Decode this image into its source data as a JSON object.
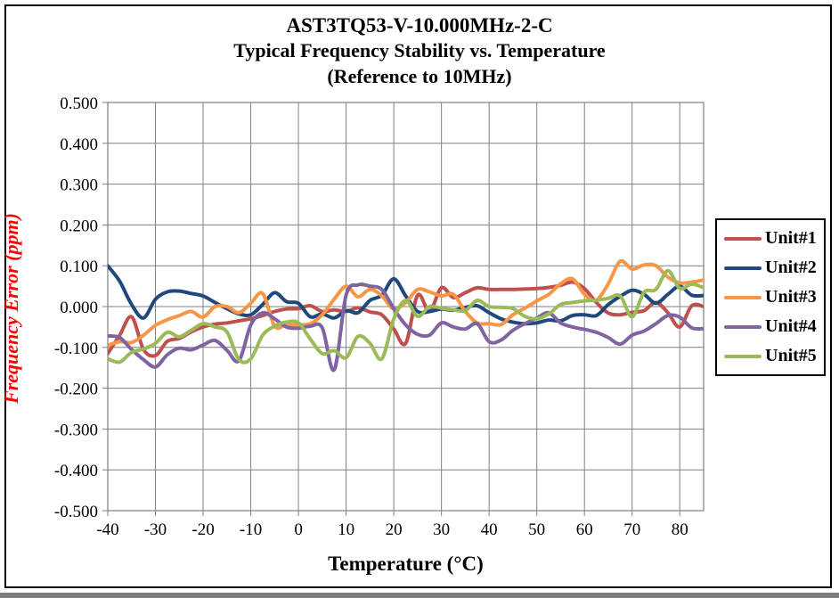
{
  "title": {
    "line1": "AST3TQ53-V-10.000MHz-2-C",
    "line2": "Typical Frequency Stability vs. Temperature",
    "line3": "(Reference to 10MHz)"
  },
  "colors": {
    "grid": "#808080",
    "axis_text": "#000000",
    "y_axis_title": "#ff0000",
    "bottom_strip": "#7f7f7f"
  },
  "chart_data": {
    "type": "line",
    "title": "AST3TQ53-V-10.000MHz-2-C — Typical Frequency Stability vs. Temperature (Reference to 10MHz)",
    "xlabel": "Temperature (°C)",
    "ylabel": "Frequency Error (ppm)",
    "xlim": [
      -40,
      85
    ],
    "ylim": [
      -0.5,
      0.5
    ],
    "grid": true,
    "legend_position": "right",
    "x_tick_values": [
      -40,
      -30,
      -20,
      -10,
      0,
      10,
      20,
      30,
      40,
      50,
      60,
      70,
      80
    ],
    "x_tick_labels": [
      "-40",
      "-30",
      "-20",
      "-10",
      "0",
      "10",
      "20",
      "30",
      "40",
      "50",
      "60",
      "70",
      "80"
    ],
    "y_tick_values": [
      0.5,
      0.4,
      0.3,
      0.2,
      0.1,
      0.0,
      -0.1,
      -0.2,
      -0.3,
      -0.4,
      -0.5
    ],
    "y_tick_labels": [
      "0.500",
      "0.400",
      "0.300",
      "0.200",
      "0.100",
      "0.000",
      "-0.100",
      "-0.200",
      "-0.300",
      "-0.400",
      "-0.500"
    ],
    "series": [
      {
        "name": "Unit#1",
        "color": "#C0504D",
        "points": [
          [
            -40,
            -0.115
          ],
          [
            -37.5,
            -0.07
          ],
          [
            -35,
            -0.025
          ],
          [
            -32.5,
            -0.105
          ],
          [
            -30,
            -0.12
          ],
          [
            -27.5,
            -0.085
          ],
          [
            -25,
            -0.078
          ],
          [
            -22.5,
            -0.062
          ],
          [
            -20,
            -0.05
          ],
          [
            -17.5,
            -0.043
          ],
          [
            -15,
            -0.04
          ],
          [
            -12.5,
            -0.035
          ],
          [
            -10,
            -0.03
          ],
          [
            -7.5,
            -0.022
          ],
          [
            -5,
            -0.012
          ],
          [
            -2.5,
            -0.006
          ],
          [
            0,
            -0.005
          ],
          [
            2.5,
            0.002
          ],
          [
            5,
            -0.012
          ],
          [
            7.5,
            -0.008
          ],
          [
            10,
            -0.012
          ],
          [
            12.5,
            -0.003
          ],
          [
            15,
            -0.013
          ],
          [
            17.5,
            -0.02
          ],
          [
            20,
            -0.055
          ],
          [
            22.5,
            -0.09
          ],
          [
            25,
            0.028
          ],
          [
            27.5,
            -0.012
          ],
          [
            30,
            0.046
          ],
          [
            32.5,
            0.022
          ],
          [
            35,
            0.034
          ],
          [
            37.5,
            0.046
          ],
          [
            40,
            0.042
          ],
          [
            42.5,
            0.042
          ],
          [
            45,
            0.042
          ],
          [
            47.5,
            0.043
          ],
          [
            50,
            0.044
          ],
          [
            52.5,
            0.047
          ],
          [
            55,
            0.052
          ],
          [
            57.5,
            0.06
          ],
          [
            60,
            0.044
          ],
          [
            62.5,
            0.01
          ],
          [
            65,
            -0.016
          ],
          [
            67.5,
            -0.02
          ],
          [
            70,
            -0.014
          ],
          [
            72.5,
            -0.01
          ],
          [
            75,
            0.01
          ],
          [
            77.5,
            -0.015
          ],
          [
            80,
            -0.05
          ],
          [
            82.5,
            0.002
          ],
          [
            85,
            0.0
          ]
        ]
      },
      {
        "name": "Unit#2",
        "color": "#1F497D",
        "points": [
          [
            -40,
            0.1
          ],
          [
            -37.5,
            0.062
          ],
          [
            -35,
            0.005
          ],
          [
            -32.5,
            -0.028
          ],
          [
            -30,
            0.018
          ],
          [
            -27.5,
            0.036
          ],
          [
            -25,
            0.038
          ],
          [
            -22.5,
            0.032
          ],
          [
            -20,
            0.026
          ],
          [
            -17.5,
            0.01
          ],
          [
            -15,
            -0.005
          ],
          [
            -12.5,
            -0.018
          ],
          [
            -10,
            -0.02
          ],
          [
            -7.5,
            0.005
          ],
          [
            -5,
            0.034
          ],
          [
            -2.5,
            0.012
          ],
          [
            0,
            0.008
          ],
          [
            2.5,
            -0.025
          ],
          [
            5,
            -0.018
          ],
          [
            7.5,
            -0.028
          ],
          [
            10,
            -0.01
          ],
          [
            12.5,
            -0.015
          ],
          [
            15,
            0.015
          ],
          [
            17.5,
            0.028
          ],
          [
            20,
            0.068
          ],
          [
            22.5,
            0.026
          ],
          [
            25,
            -0.012
          ],
          [
            27.5,
            -0.012
          ],
          [
            30,
            -0.006
          ],
          [
            32.5,
            -0.009
          ],
          [
            35,
            -0.002
          ],
          [
            37.5,
            0.002
          ],
          [
            40,
            -0.015
          ],
          [
            42.5,
            -0.03
          ],
          [
            45,
            -0.038
          ],
          [
            47.5,
            -0.042
          ],
          [
            50,
            -0.04
          ],
          [
            52.5,
            -0.033
          ],
          [
            55,
            -0.035
          ],
          [
            57.5,
            -0.022
          ],
          [
            60,
            -0.02
          ],
          [
            62.5,
            -0.022
          ],
          [
            65,
            0.005
          ],
          [
            67.5,
            0.025
          ],
          [
            70,
            0.04
          ],
          [
            72.5,
            0.03
          ],
          [
            75,
            0.008
          ],
          [
            77.5,
            0.03
          ],
          [
            80,
            0.05
          ],
          [
            82.5,
            0.028
          ],
          [
            85,
            0.027
          ]
        ]
      },
      {
        "name": "Unit#3",
        "color": "#F79646",
        "points": [
          [
            -40,
            -0.095
          ],
          [
            -37.5,
            -0.086
          ],
          [
            -35,
            -0.088
          ],
          [
            -32.5,
            -0.07
          ],
          [
            -30,
            -0.046
          ],
          [
            -27.5,
            -0.032
          ],
          [
            -25,
            -0.022
          ],
          [
            -22.5,
            -0.012
          ],
          [
            -20,
            -0.026
          ],
          [
            -17.5,
            0.0
          ],
          [
            -15,
            0.0
          ],
          [
            -12.5,
            -0.015
          ],
          [
            -10,
            0.008
          ],
          [
            -7.5,
            0.032
          ],
          [
            -5,
            -0.048
          ],
          [
            -2.5,
            -0.044
          ],
          [
            0,
            -0.045
          ],
          [
            2.5,
            -0.042
          ],
          [
            5,
            -0.02
          ],
          [
            7.5,
            0.018
          ],
          [
            10,
            0.05
          ],
          [
            12.5,
            0.024
          ],
          [
            15,
            0.042
          ],
          [
            17.5,
            0.026
          ],
          [
            20,
            -0.006
          ],
          [
            22.5,
            0.01
          ],
          [
            25,
            0.042
          ],
          [
            27.5,
            0.036
          ],
          [
            30,
            0.026
          ],
          [
            32.5,
            0.03
          ],
          [
            35,
            -0.012
          ],
          [
            37.5,
            -0.04
          ],
          [
            40,
            -0.042
          ],
          [
            42.5,
            -0.044
          ],
          [
            45,
            -0.02
          ],
          [
            47.5,
            -0.004
          ],
          [
            50,
            0.014
          ],
          [
            52.5,
            0.03
          ],
          [
            55,
            0.056
          ],
          [
            57.5,
            0.068
          ],
          [
            60,
            0.03
          ],
          [
            62.5,
            0.016
          ],
          [
            65,
            0.056
          ],
          [
            67.5,
            0.111
          ],
          [
            70,
            0.092
          ],
          [
            72.5,
            0.102
          ],
          [
            75,
            0.1
          ],
          [
            77.5,
            0.072
          ],
          [
            80,
            0.058
          ],
          [
            82.5,
            0.06
          ],
          [
            85,
            0.065
          ]
        ]
      },
      {
        "name": "Unit#4",
        "color": "#8064A2",
        "points": [
          [
            -40,
            -0.072
          ],
          [
            -37.5,
            -0.076
          ],
          [
            -35,
            -0.105
          ],
          [
            -32.5,
            -0.13
          ],
          [
            -30,
            -0.148
          ],
          [
            -27.5,
            -0.118
          ],
          [
            -25,
            -0.102
          ],
          [
            -22.5,
            -0.106
          ],
          [
            -20,
            -0.094
          ],
          [
            -17.5,
            -0.083
          ],
          [
            -15,
            -0.107
          ],
          [
            -12.5,
            -0.133
          ],
          [
            -10,
            -0.045
          ],
          [
            -7.5,
            -0.015
          ],
          [
            -5,
            -0.03
          ],
          [
            -2.5,
            -0.05
          ],
          [
            0,
            -0.053
          ],
          [
            2.5,
            -0.048
          ],
          [
            5,
            -0.052
          ],
          [
            7.5,
            -0.155
          ],
          [
            10,
            0.028
          ],
          [
            12.5,
            0.053
          ],
          [
            15,
            0.05
          ],
          [
            17.5,
            0.042
          ],
          [
            20,
            -0.005
          ],
          [
            22.5,
            -0.045
          ],
          [
            25,
            -0.068
          ],
          [
            27.5,
            -0.07
          ],
          [
            30,
            -0.04
          ],
          [
            32.5,
            -0.05
          ],
          [
            35,
            -0.055
          ],
          [
            37.5,
            -0.042
          ],
          [
            40,
            -0.086
          ],
          [
            42.5,
            -0.082
          ],
          [
            45,
            -0.058
          ],
          [
            47.5,
            -0.042
          ],
          [
            50,
            -0.028
          ],
          [
            52.5,
            -0.015
          ],
          [
            55,
            -0.04
          ],
          [
            57.5,
            -0.05
          ],
          [
            60,
            -0.056
          ],
          [
            62.5,
            -0.063
          ],
          [
            65,
            -0.076
          ],
          [
            67.5,
            -0.092
          ],
          [
            70,
            -0.07
          ],
          [
            72.5,
            -0.06
          ],
          [
            75,
            -0.042
          ],
          [
            77.5,
            -0.022
          ],
          [
            80,
            -0.026
          ],
          [
            82.5,
            -0.052
          ],
          [
            85,
            -0.054
          ]
        ]
      },
      {
        "name": "Unit#5",
        "color": "#9BBB59",
        "points": [
          [
            -40,
            -0.128
          ],
          [
            -37.5,
            -0.136
          ],
          [
            -35,
            -0.112
          ],
          [
            -32.5,
            -0.104
          ],
          [
            -30,
            -0.09
          ],
          [
            -27.5,
            -0.063
          ],
          [
            -25,
            -0.074
          ],
          [
            -22.5,
            -0.058
          ],
          [
            -20,
            -0.042
          ],
          [
            -17.5,
            -0.05
          ],
          [
            -15,
            -0.062
          ],
          [
            -12.5,
            -0.13
          ],
          [
            -10,
            -0.128
          ],
          [
            -7.5,
            -0.07
          ],
          [
            -5,
            -0.048
          ],
          [
            -2.5,
            -0.038
          ],
          [
            0,
            -0.04
          ],
          [
            2.5,
            -0.08
          ],
          [
            5,
            -0.115
          ],
          [
            7.5,
            -0.108
          ],
          [
            10,
            -0.125
          ],
          [
            12.5,
            -0.073
          ],
          [
            15,
            -0.09
          ],
          [
            17.5,
            -0.128
          ],
          [
            20,
            -0.03
          ],
          [
            22.5,
            0.015
          ],
          [
            25,
            -0.024
          ],
          [
            27.5,
            0.0
          ],
          [
            30,
            -0.004
          ],
          [
            32.5,
            -0.008
          ],
          [
            35,
            -0.01
          ],
          [
            37.5,
            0.015
          ],
          [
            40,
            0.0
          ],
          [
            42.5,
            -0.002
          ],
          [
            45,
            -0.005
          ],
          [
            47.5,
            -0.024
          ],
          [
            50,
            -0.03
          ],
          [
            52.5,
            -0.018
          ],
          [
            55,
            0.005
          ],
          [
            57.5,
            0.01
          ],
          [
            60,
            0.014
          ],
          [
            62.5,
            0.016
          ],
          [
            65,
            0.02
          ],
          [
            67.5,
            0.026
          ],
          [
            70,
            -0.025
          ],
          [
            72.5,
            0.035
          ],
          [
            75,
            0.042
          ],
          [
            77.5,
            0.088
          ],
          [
            80,
            0.045
          ],
          [
            82.5,
            0.055
          ],
          [
            85,
            0.046
          ]
        ]
      }
    ]
  }
}
